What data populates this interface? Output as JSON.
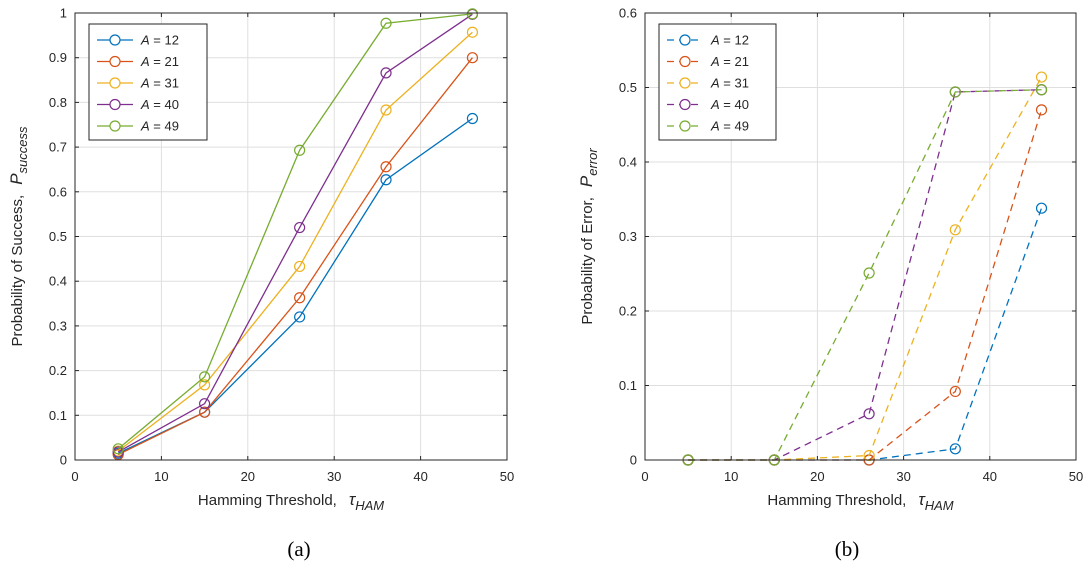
{
  "chart_data": [
    {
      "type": "line",
      "panel_label": "(a)",
      "xlabel": "Hamming Threshold,",
      "xlabel_symbol": "τ",
      "xlabel_sub": "HAM",
      "ylabel": "Probability of Success,",
      "ylabel_symbol": "P",
      "ylabel_sub": "success",
      "xlim": [
        0,
        50
      ],
      "ylim": [
        0,
        1
      ],
      "xticks": [
        0,
        10,
        20,
        30,
        40,
        50
      ],
      "yticks": [
        0,
        0.1,
        0.2,
        0.3,
        0.4,
        0.5,
        0.6,
        0.7,
        0.8,
        0.9,
        1
      ],
      "grid": true,
      "line_style": "solid",
      "legend_position": "top-left",
      "x": [
        5,
        15,
        26,
        36,
        46
      ],
      "series": [
        {
          "name_var": "A",
          "name_rest": " = 12",
          "color": "#0072BD",
          "values": [
            0.015,
            0.107,
            0.32,
            0.627,
            0.764
          ]
        },
        {
          "name_var": "A",
          "name_rest": " = 21",
          "color": "#D95319",
          "values": [
            0.012,
            0.107,
            0.363,
            0.656,
            0.9
          ]
        },
        {
          "name_var": "A",
          "name_rest": " = 31",
          "color": "#EDB120",
          "values": [
            0.02,
            0.168,
            0.433,
            0.783,
            0.957
          ]
        },
        {
          "name_var": "A",
          "name_rest": " = 40",
          "color": "#7E2F8E",
          "values": [
            0.018,
            0.126,
            0.52,
            0.866,
            0.997
          ]
        },
        {
          "name_var": "A",
          "name_rest": " = 49",
          "color": "#77AC30",
          "values": [
            0.025,
            0.186,
            0.693,
            0.977,
            0.998
          ]
        }
      ]
    },
    {
      "type": "line",
      "panel_label": "(b)",
      "xlabel": "Hamming Threshold,",
      "xlabel_symbol": "τ",
      "xlabel_sub": "HAM",
      "ylabel": "Probability of Error,",
      "ylabel_symbol": "P",
      "ylabel_sub": "error",
      "xlim": [
        0,
        50
      ],
      "ylim": [
        0,
        0.6
      ],
      "xticks": [
        0,
        10,
        20,
        30,
        40,
        50
      ],
      "yticks": [
        0,
        0.1,
        0.2,
        0.3,
        0.4,
        0.5,
        0.6
      ],
      "grid": true,
      "line_style": "dashed",
      "legend_position": "top-left",
      "x": [
        5,
        15,
        26,
        36,
        46
      ],
      "series": [
        {
          "name_var": "A",
          "name_rest": " = 12",
          "color": "#0072BD",
          "values": [
            0,
            0,
            0,
            0.015,
            0.338
          ]
        },
        {
          "name_var": "A",
          "name_rest": " = 21",
          "color": "#D95319",
          "values": [
            0,
            0,
            0,
            0.092,
            0.47
          ]
        },
        {
          "name_var": "A",
          "name_rest": " = 31",
          "color": "#EDB120",
          "values": [
            0,
            0,
            0.006,
            0.309,
            0.514
          ]
        },
        {
          "name_var": "A",
          "name_rest": " = 40",
          "color": "#7E2F8E",
          "values": [
            0,
            0,
            0.062,
            0.494,
            0.497
          ]
        },
        {
          "name_var": "A",
          "name_rest": " = 49",
          "color": "#77AC30",
          "values": [
            0,
            0,
            0.251,
            0.494,
            0.497
          ]
        }
      ]
    }
  ]
}
